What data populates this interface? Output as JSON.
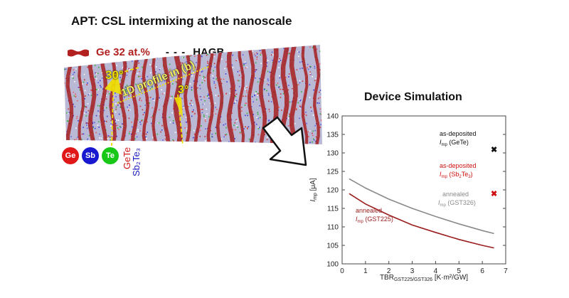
{
  "title": "APT: CSL intermixing at the nanoscale",
  "legend": {
    "ge_label": "Ge 32 at.%",
    "hagb_dash": "- - -",
    "hagb_label": "HAGB",
    "ge_color": "#b22020"
  },
  "annotations": {
    "angle_1": "30°",
    "angle_2": "3°",
    "profile": "1D profile in (b)"
  },
  "elements": [
    {
      "label": "Ge",
      "color": "#e01818"
    },
    {
      "label": "Sb",
      "color": "#1818d0"
    },
    {
      "label": "Te",
      "color": "#18c818"
    }
  ],
  "compounds": {
    "gete": "GeTe",
    "sb2te3": "Sb₂Te₃"
  },
  "simulation_title": "Device Simulation",
  "chart_data": {
    "type": "line",
    "xlabel_main": "TBR",
    "xlabel_sub": "GST225/GST326",
    "xlabel_unit": " [K·m²/GW]",
    "ylabel_main": "I",
    "ylabel_sub": "mp",
    "ylabel_unit": " [μA]",
    "xlim": [
      0,
      7
    ],
    "ylim": [
      100,
      140
    ],
    "xticks": [
      0,
      1,
      2,
      3,
      4,
      5,
      6,
      7
    ],
    "yticks": [
      100,
      105,
      110,
      115,
      120,
      125,
      130,
      135,
      140
    ],
    "series": [
      {
        "color": "#8a8a8a",
        "x": [
          0.3,
          1,
          2,
          3,
          4,
          5,
          6,
          6.5
        ],
        "y": [
          123,
          120.5,
          117.5,
          115,
          112.8,
          110.8,
          109,
          108.2
        ]
      },
      {
        "color": "#9a1c1c",
        "x": [
          0.3,
          1,
          2,
          3,
          4,
          5,
          6,
          6.5
        ],
        "y": [
          119,
          116.2,
          113.2,
          110.5,
          108.5,
          106.6,
          105,
          104.3
        ]
      }
    ],
    "points": [
      {
        "marker": "✖",
        "x": 6.5,
        "y": 131,
        "color": "#111111"
      },
      {
        "marker": "✖",
        "x": 6.5,
        "y": 119,
        "color": "#d01010"
      }
    ],
    "labels": {
      "as_dep_gete_line1": "as-deposited",
      "as_dep_gete_main": "I",
      "as_dep_gete_sub": "mp",
      "as_dep_gete_rest": " (GeTe)",
      "as_dep_sb_line1": "as-deposited",
      "as_dep_sb_main": "I",
      "as_dep_sb_sub": "mp",
      "as_dep_sb_rest": " (Sb",
      "as_dep_sb_sub2": "2",
      "as_dep_sb_rest2": "Te",
      "as_dep_sb_sub3": "3",
      "as_dep_sb_rest3": ")",
      "ann326_line1": "annealed",
      "ann326_main": "I",
      "ann326_sub": "mp",
      "ann326_rest": " (GST326)",
      "ann225_line1": "annealed",
      "ann225_main": "I",
      "ann225_sub": "mp",
      "ann225_rest": " (GST225)"
    }
  }
}
